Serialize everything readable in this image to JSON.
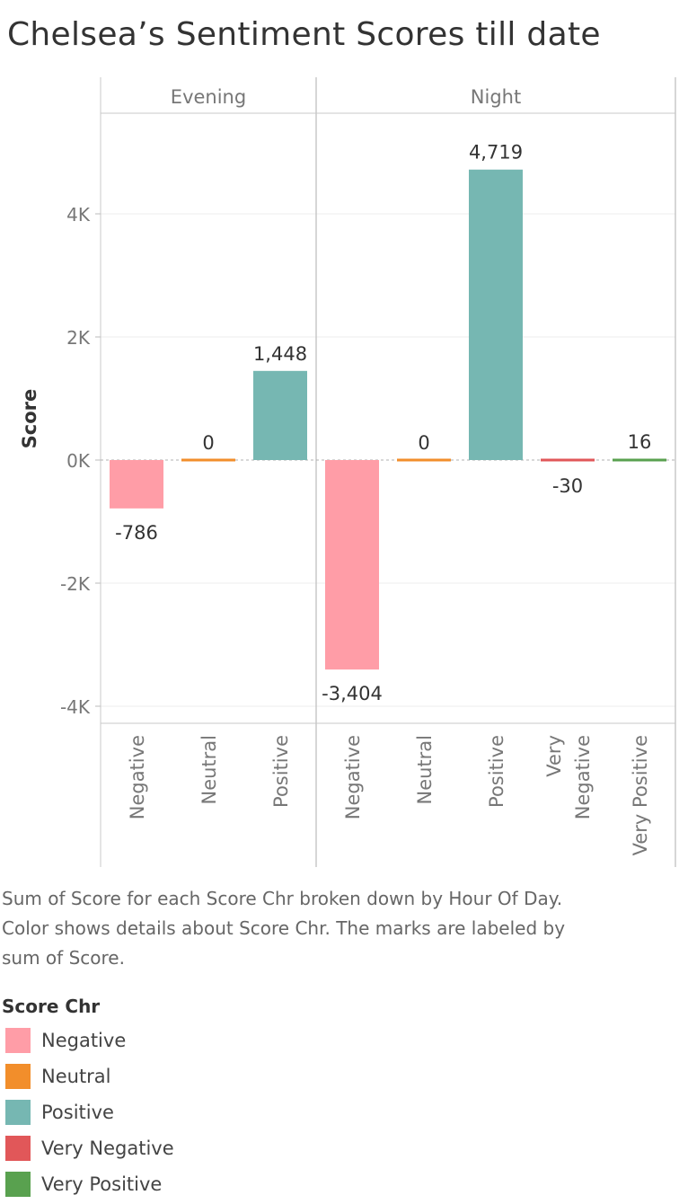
{
  "title": "Chelsea’s Sentiment Scores till date",
  "caption": {
    "line1": "Sum of Score for each Score Chr broken down by Hour Of Day.",
    "line2": "Color shows details about Score Chr.  The marks are labeled by",
    "line3": "sum of Score."
  },
  "legend": {
    "title": "Score Chr",
    "items": [
      {
        "label": "Negative",
        "color": "#ff9da7"
      },
      {
        "label": "Neutral",
        "color": "#f28e2b"
      },
      {
        "label": "Positive",
        "color": "#76b7b2"
      },
      {
        "label": "Very Negative",
        "color": "#e15759"
      },
      {
        "label": "Very Positive",
        "color": "#59a14f"
      }
    ]
  },
  "chart_data": {
    "type": "bar",
    "ylabel": "Score",
    "ylim": [
      -4200,
      5400
    ],
    "yticks": [
      -4000,
      -2000,
      0,
      2000,
      4000
    ],
    "ytick_labels": [
      "-4K",
      "-2K",
      "0K",
      "2K",
      "4K"
    ],
    "panels": [
      {
        "name": "Evening",
        "categories": [
          "Negative",
          "Neutral",
          "Positive"
        ],
        "values": [
          -786,
          0,
          1448
        ],
        "labels": [
          "-786",
          "0",
          "1,448"
        ]
      },
      {
        "name": "Night",
        "categories": [
          "Negative",
          "Neutral",
          "Positive",
          "Very Negative",
          "Very Positive"
        ],
        "category_lines": [
          [
            "Negative"
          ],
          [
            "Neutral"
          ],
          [
            "Positive"
          ],
          [
            "Very",
            "Negative"
          ],
          [
            "Very Positive"
          ]
        ],
        "values": [
          -3404,
          0,
          4719,
          -30,
          16
        ],
        "labels": [
          "-3,404",
          "0",
          "4,719",
          "-30",
          "16"
        ]
      }
    ]
  }
}
